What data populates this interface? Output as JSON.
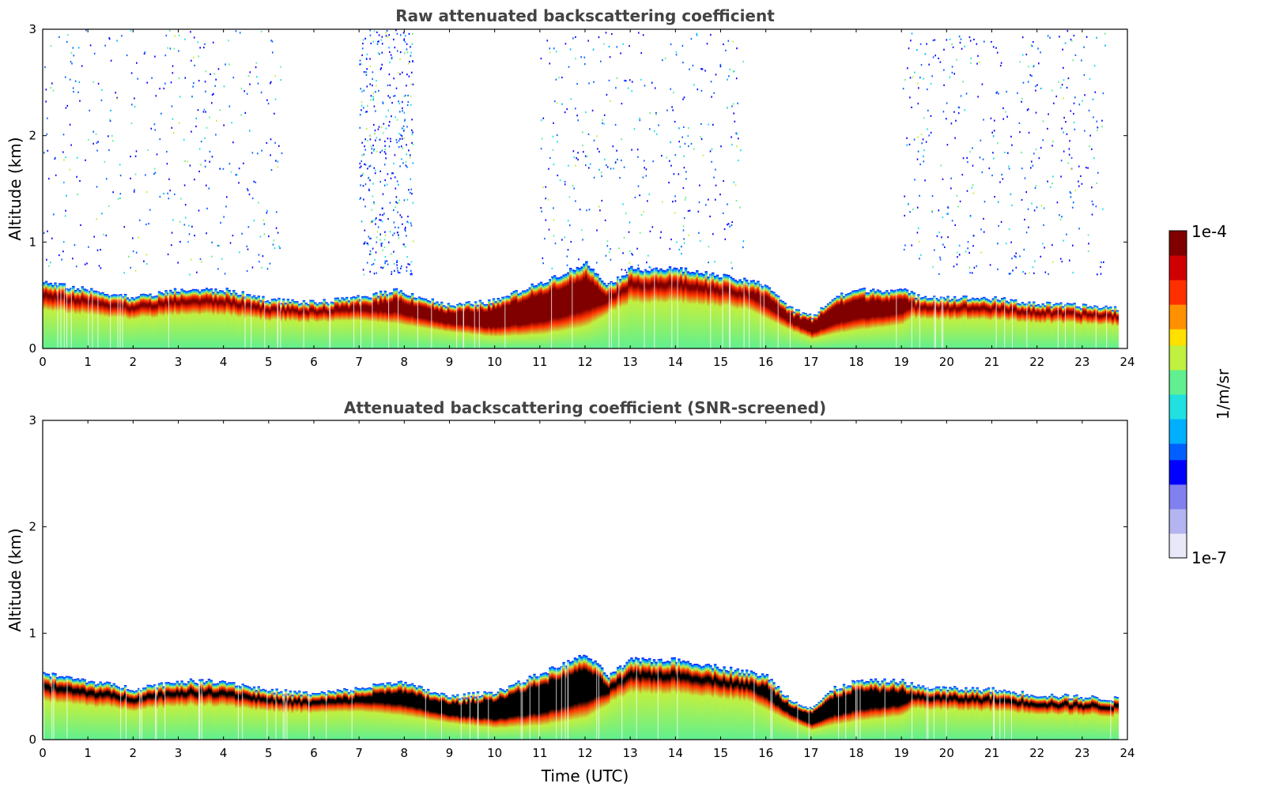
{
  "chart_data": [
    {
      "type": "heatmap",
      "panel": "top",
      "title": "Raw attenuated backscattering coefficient",
      "xlabel": "",
      "ylabel": "Altitude (km)",
      "xlim": [
        0,
        24
      ],
      "ylim": [
        0,
        3
      ],
      "xticks": [
        "0",
        "1",
        "2",
        "3",
        "4",
        "5",
        "6",
        "7",
        "8",
        "9",
        "10",
        "11",
        "12",
        "13",
        "14",
        "15",
        "16",
        "17",
        "18",
        "19",
        "20",
        "21",
        "22",
        "23",
        "24"
      ],
      "yticks": [
        "0",
        "1",
        "2",
        "3"
      ],
      "screened": false,
      "data_end_hour": 23.8,
      "layer_top_km": [
        [
          0,
          0.62
        ],
        [
          1,
          0.55
        ],
        [
          2,
          0.48
        ],
        [
          3,
          0.55
        ],
        [
          4,
          0.55
        ],
        [
          5,
          0.46
        ],
        [
          6,
          0.43
        ],
        [
          7,
          0.48
        ],
        [
          7.8,
          0.55
        ],
        [
          9,
          0.4
        ],
        [
          10,
          0.45
        ],
        [
          11,
          0.62
        ],
        [
          12,
          0.8
        ],
        [
          12.5,
          0.6
        ],
        [
          13,
          0.75
        ],
        [
          14,
          0.75
        ],
        [
          15,
          0.68
        ],
        [
          16,
          0.6
        ],
        [
          16.5,
          0.38
        ],
        [
          17,
          0.3
        ],
        [
          17.5,
          0.48
        ],
        [
          18,
          0.55
        ],
        [
          19,
          0.55
        ],
        [
          19.3,
          0.5
        ],
        [
          20,
          0.48
        ],
        [
          21,
          0.47
        ],
        [
          22,
          0.42
        ],
        [
          23,
          0.4
        ],
        [
          23.8,
          0.38
        ]
      ],
      "layer_bottom_km": [
        [
          0,
          0.35
        ],
        [
          1,
          0.3
        ],
        [
          2,
          0.3
        ],
        [
          3,
          0.33
        ],
        [
          4,
          0.33
        ],
        [
          5,
          0.25
        ],
        [
          6,
          0.2
        ],
        [
          7,
          0.2
        ],
        [
          8,
          0.15
        ],
        [
          9,
          0.1
        ],
        [
          10,
          0.05
        ],
        [
          11,
          0.05
        ],
        [
          12,
          0.1
        ],
        [
          12.5,
          0.25
        ],
        [
          13,
          0.55
        ],
        [
          14,
          0.5
        ],
        [
          15,
          0.4
        ],
        [
          16,
          0.2
        ],
        [
          17,
          0.05
        ],
        [
          18,
          0.1
        ],
        [
          19,
          0.15
        ],
        [
          19.3,
          0.25
        ],
        [
          20,
          0.25
        ],
        [
          21,
          0.25
        ],
        [
          22,
          0.2
        ],
        [
          23,
          0.2
        ],
        [
          23.8,
          0.2
        ]
      ],
      "noise_periods_hours": [
        [
          0,
          5.3
        ],
        [
          7,
          8.2
        ],
        [
          11,
          15.5
        ],
        [
          19,
          23.5
        ]
      ]
    },
    {
      "type": "heatmap",
      "panel": "bottom",
      "title": "Attenuated backscattering coefficient (SNR-screened)",
      "xlabel": "Time (UTC)",
      "ylabel": "Altitude (km)",
      "xlim": [
        0,
        24
      ],
      "ylim": [
        0,
        3
      ],
      "xticks": [
        "0",
        "1",
        "2",
        "3",
        "4",
        "5",
        "6",
        "7",
        "8",
        "9",
        "10",
        "11",
        "12",
        "13",
        "14",
        "15",
        "16",
        "17",
        "18",
        "19",
        "20",
        "21",
        "22",
        "23",
        "24"
      ],
      "yticks": [
        "0",
        "1",
        "2",
        "3"
      ],
      "screened": true,
      "data_end_hour": 23.8
    }
  ],
  "colorbar": {
    "max_label": "1e-4",
    "min_label": "1e-7",
    "units": "1/m/sr",
    "colors": [
      "#e8e8f8",
      "#b4b4f0",
      "#8080ee",
      "#0000ff",
      "#0060ff",
      "#00b0ff",
      "#20e0e0",
      "#60f090",
      "#c0f040",
      "#ffe000",
      "#ff9000",
      "#ff3000",
      "#d00000",
      "#800000"
    ]
  }
}
